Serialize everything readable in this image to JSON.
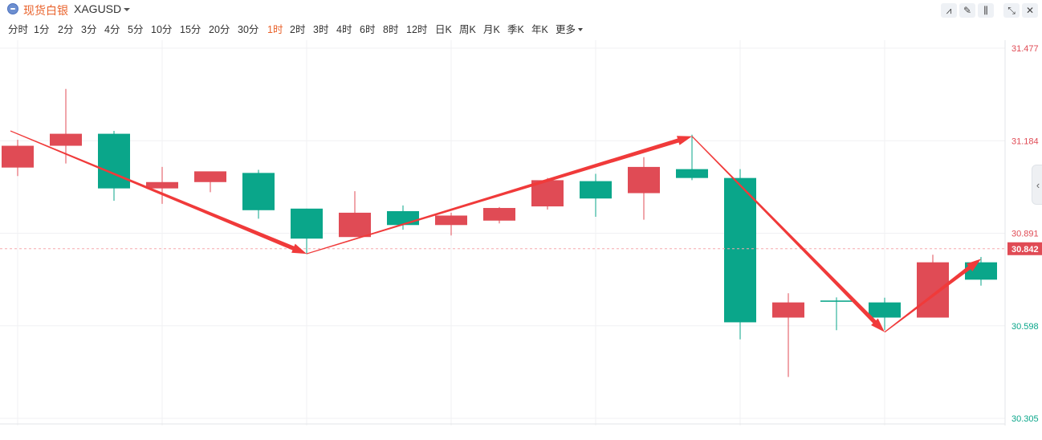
{
  "header": {
    "symbol_cn": "现货白银",
    "symbol_code": "XAGUSD",
    "symbol_icon": "silver-coin-icon",
    "tools": [
      {
        "name": "indicator-tool-button",
        "icon": "line-chart-icon",
        "glyph": "⩘"
      },
      {
        "name": "draw-tool-button",
        "icon": "pencil-icon",
        "glyph": "✎"
      },
      {
        "name": "chart-type-button",
        "icon": "candlestick-icon",
        "glyph": "⫼"
      },
      {
        "name": "fullscreen-button",
        "icon": "collapse-arrows-icon",
        "glyph": "⤡"
      },
      {
        "name": "close-button",
        "icon": "close-icon",
        "glyph": "✕"
      }
    ]
  },
  "periods": [
    "分时",
    "1分",
    "2分",
    "3分",
    "4分",
    "5分",
    "10分",
    "15分",
    "20分",
    "30分",
    "1时",
    "2时",
    "3时",
    "4时",
    "6时",
    "8时",
    "12时",
    "日K",
    "周K",
    "月K",
    "季K",
    "年K",
    "更多"
  ],
  "active_period": "1时",
  "colors": {
    "up": "#e04b55",
    "down": "#0aa68a",
    "accent": "#e9622b",
    "arrow": "#f03a3a",
    "current": "#e04b55"
  },
  "chart_data": {
    "type": "candlestick",
    "y_axis_labels": [
      "31.477",
      "31.184",
      "30.891",
      "30.598",
      "30.305"
    ],
    "ylim": [
      30.305,
      31.477
    ],
    "current_price": "30.842",
    "candles": [
      {
        "o": 31.099,
        "h": 31.187,
        "c": 31.168,
        "l": 31.072
      },
      {
        "o": 31.168,
        "h": 31.348,
        "c": 31.206,
        "l": 31.112
      },
      {
        "o": 31.206,
        "h": 31.215,
        "c": 31.033,
        "l": 30.994
      },
      {
        "o": 31.033,
        "h": 31.101,
        "c": 31.053,
        "l": 30.984
      },
      {
        "o": 31.053,
        "h": 31.081,
        "c": 31.087,
        "l": 31.021
      },
      {
        "o": 31.082,
        "h": 31.092,
        "c": 30.964,
        "l": 30.937
      },
      {
        "o": 30.969,
        "h": 30.969,
        "c": 30.874,
        "l": 30.825
      },
      {
        "o": 30.879,
        "h": 31.024,
        "c": 30.956,
        "l": 30.879
      },
      {
        "o": 30.961,
        "h": 30.979,
        "c": 30.917,
        "l": 30.902
      },
      {
        "o": 30.917,
        "h": 30.956,
        "c": 30.947,
        "l": 30.884
      },
      {
        "o": 30.931,
        "h": 30.974,
        "c": 30.971,
        "l": 30.922
      },
      {
        "o": 30.976,
        "h": 31.066,
        "c": 31.059,
        "l": 30.966
      },
      {
        "o": 31.056,
        "h": 31.079,
        "c": 31.001,
        "l": 30.943
      },
      {
        "o": 31.018,
        "h": 31.132,
        "c": 31.101,
        "l": 30.934
      },
      {
        "o": 31.094,
        "h": 31.203,
        "c": 31.066,
        "l": 31.059
      },
      {
        "o": 31.066,
        "h": 31.094,
        "c": 30.609,
        "l": 30.555
      },
      {
        "o": 30.624,
        "h": 30.701,
        "c": 30.672,
        "l": 30.436
      },
      {
        "o": 30.678,
        "h": 30.688,
        "c": 30.674,
        "l": 30.584
      },
      {
        "o": 30.672,
        "h": 30.687,
        "c": 30.624,
        "l": 30.584
      },
      {
        "o": 30.624,
        "h": 30.823,
        "c": 30.799,
        "l": 30.624
      },
      {
        "o": 30.799,
        "h": 30.816,
        "c": 30.744,
        "l": 30.725
      }
    ],
    "trend_arrows": [
      {
        "from": [
          0,
          31.215
        ],
        "to": [
          6,
          30.826
        ]
      },
      {
        "from": [
          6,
          30.826
        ],
        "to": [
          14,
          31.198
        ]
      },
      {
        "from": [
          14,
          31.198
        ],
        "to": [
          18,
          30.578
        ]
      },
      {
        "from": [
          18,
          30.578
        ],
        "to": [
          20,
          30.81
        ]
      }
    ]
  }
}
